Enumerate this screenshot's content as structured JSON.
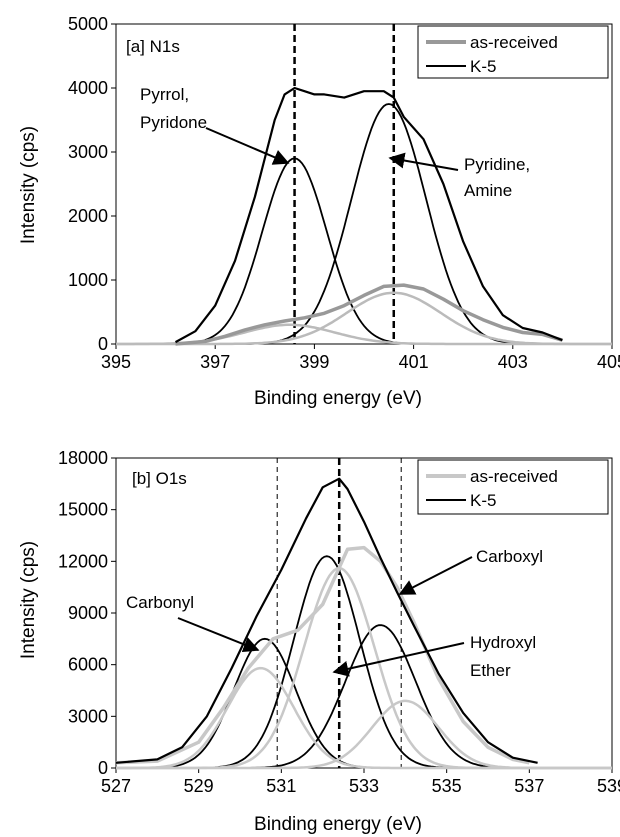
{
  "chart_data": [
    {
      "type": "line",
      "panel_label": "[a] N1s",
      "xlabel": "Binding energy (eV)",
      "ylabel": "Intensity (cps)",
      "xlim": [
        395,
        405
      ],
      "ylim": [
        0,
        5000
      ],
      "xticks": [
        395,
        397,
        399,
        401,
        403,
        405
      ],
      "yticks": [
        0,
        1000,
        2000,
        3000,
        4000,
        5000
      ],
      "grid": false,
      "legend_position": "top-right",
      "legend": [
        {
          "label": "as-received",
          "color": "#999999"
        },
        {
          "label": "K-5",
          "color": "#000000"
        }
      ],
      "vlines": [
        398.6,
        400.6
      ],
      "series": [
        {
          "name": "as-received",
          "color": "#999999",
          "x": [
            396.2,
            396.8,
            397.2,
            397.6,
            398.0,
            398.4,
            398.8,
            399.2,
            399.6,
            400.0,
            400.4,
            400.8,
            401.2,
            401.6,
            402.0,
            402.4,
            402.8,
            403.2,
            403.6,
            404.0
          ],
          "y": [
            0,
            40,
            120,
            220,
            300,
            360,
            410,
            480,
            600,
            760,
            900,
            920,
            860,
            700,
            520,
            380,
            260,
            180,
            150,
            60
          ]
        },
        {
          "name": "K-5",
          "color": "#000000",
          "x": [
            396.2,
            396.6,
            397.0,
            397.4,
            397.8,
            398.0,
            398.2,
            398.4,
            398.6,
            398.8,
            399.0,
            399.2,
            399.6,
            400.0,
            400.4,
            400.6,
            400.8,
            401.2,
            401.6,
            402.0,
            402.4,
            402.8,
            403.2,
            403.6,
            404.0
          ],
          "y": [
            30,
            200,
            600,
            1300,
            2300,
            2900,
            3500,
            3900,
            4000,
            3950,
            3900,
            3900,
            3850,
            3950,
            3950,
            3850,
            3550,
            3200,
            2500,
            1600,
            900,
            450,
            250,
            180,
            60
          ]
        }
      ],
      "components": [
        {
          "label": "Pyrrol, Pyridone",
          "center": 398.6,
          "amplitude": 2900,
          "color": "#000000"
        },
        {
          "label": "Pyridine, Amine",
          "center": 400.5,
          "amplitude": 3750,
          "color": "#000000"
        },
        {
          "label": "",
          "center": 398.5,
          "amplitude": 300,
          "color": "#bbbbbb"
        },
        {
          "label": "",
          "center": 400.6,
          "amplitude": 800,
          "color": "#bbbbbb"
        }
      ],
      "annotations": [
        {
          "lines": [
            "Pyrrol,",
            "Pyridone"
          ]
        },
        {
          "lines": [
            "Pyridine,",
            "Amine"
          ]
        }
      ]
    },
    {
      "type": "line",
      "panel_label": "[b] O1s",
      "xlabel": "Binding energy (eV)",
      "ylabel": "Intensity (cps)",
      "xlim": [
        527,
        539
      ],
      "ylim": [
        0,
        18000
      ],
      "xticks": [
        527,
        529,
        531,
        533,
        535,
        537,
        539
      ],
      "yticks": [
        0,
        3000,
        6000,
        9000,
        12000,
        15000,
        18000
      ],
      "grid": false,
      "legend_position": "top-right",
      "legend": [
        {
          "label": "as-received",
          "color": "#c8c8c8"
        },
        {
          "label": "K-5",
          "color": "#000000"
        }
      ],
      "vlines": [
        530.9,
        532.4,
        533.9
      ],
      "series": [
        {
          "name": "as-received",
          "color": "#c8c8c8",
          "x": [
            527.0,
            528.0,
            529.0,
            529.6,
            530.2,
            530.8,
            531.4,
            532.0,
            532.6,
            533.0,
            533.4,
            533.8,
            534.2,
            534.8,
            535.4,
            536.0,
            536.6,
            537.0
          ],
          "y": [
            300,
            400,
            1500,
            3500,
            5800,
            7500,
            8000,
            9500,
            12700,
            12800,
            12000,
            10500,
            8500,
            5200,
            2700,
            1200,
            500,
            300
          ]
        },
        {
          "name": "K-5",
          "color": "#000000",
          "x": [
            527.0,
            528.0,
            528.6,
            529.2,
            529.8,
            530.4,
            531.0,
            531.6,
            532.0,
            532.4,
            532.6,
            533.0,
            533.4,
            533.8,
            534.2,
            534.8,
            535.4,
            536.0,
            536.6,
            537.2
          ],
          "y": [
            300,
            500,
            1200,
            3000,
            5800,
            8800,
            11500,
            14500,
            16300,
            16800,
            16200,
            14300,
            12200,
            10200,
            8300,
            5500,
            3200,
            1500,
            600,
            300
          ]
        }
      ],
      "components": [
        {
          "label": "Carbonyl",
          "center": 530.6,
          "amplitude": 7500,
          "color": "#000000"
        },
        {
          "label": "",
          "center": 532.1,
          "amplitude": 12300,
          "color": "#000000"
        },
        {
          "label": "Hydroxyl Ether",
          "center": 533.4,
          "amplitude": 8300,
          "color": "#000000"
        },
        {
          "label": "",
          "center": 530.5,
          "amplitude": 5800,
          "color": "#c8c8c8"
        },
        {
          "label": "",
          "center": 532.4,
          "amplitude": 11600,
          "color": "#c8c8c8"
        },
        {
          "label": "",
          "center": 534.0,
          "amplitude": 3900,
          "color": "#c8c8c8"
        }
      ],
      "annotations": [
        {
          "lines": [
            "Carboxyl"
          ]
        },
        {
          "lines": [
            "Carbonyl"
          ]
        },
        {
          "lines": [
            "Hydroxyl",
            "Ether"
          ]
        }
      ]
    }
  ]
}
